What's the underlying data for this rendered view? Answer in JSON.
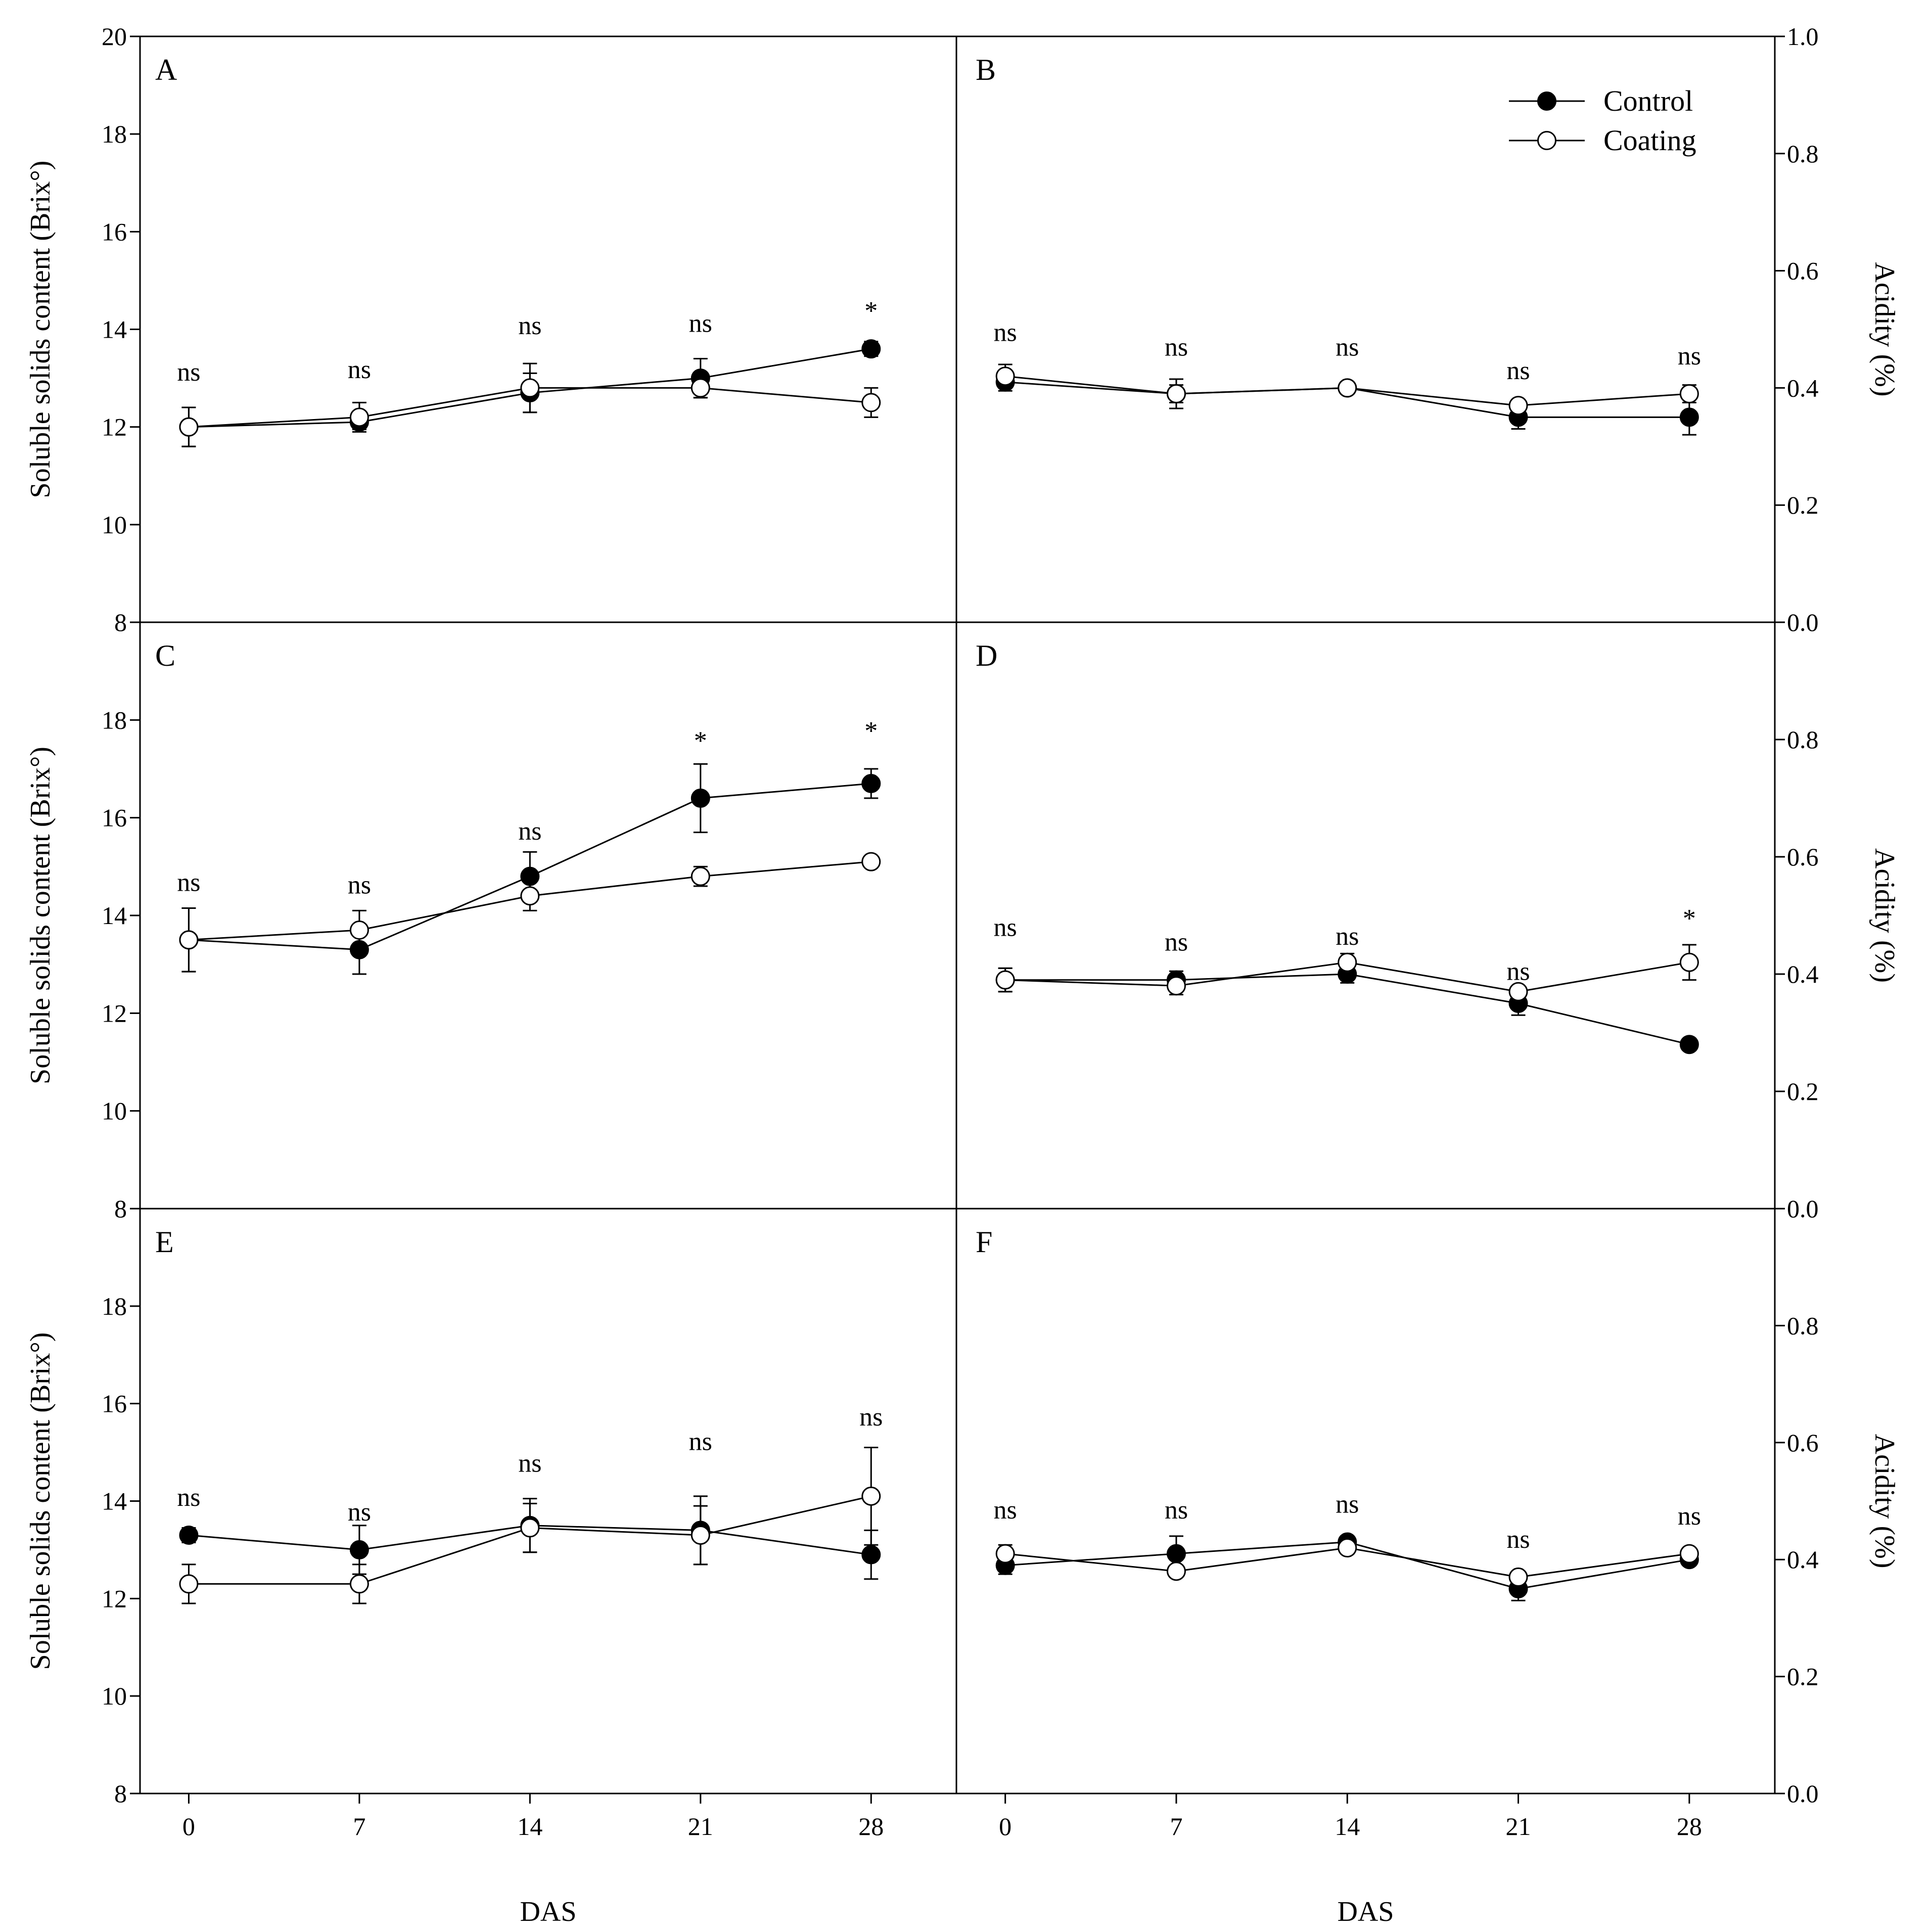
{
  "figure": {
    "x_axis_label": "DAS",
    "left_y_label": "Soluble solids content (Brix°)",
    "right_y_label": "Acidity (%)",
    "legend": [
      {
        "name": "Control",
        "marker": "filled-circle"
      },
      {
        "name": "Coating",
        "marker": "open-circle"
      }
    ]
  },
  "chart_data": [
    {
      "panel": "A",
      "type": "line",
      "axis": "left",
      "x": [
        0,
        7,
        14,
        21,
        28
      ],
      "xlabel": "DAS",
      "ylabel": "Soluble solids content (Brix°)",
      "xlim": [
        -2,
        31.5
      ],
      "ylim": [
        8,
        20
      ],
      "yticks": [
        8,
        10,
        12,
        14,
        16,
        18,
        20
      ],
      "series": [
        {
          "name": "Control",
          "values": [
            12.0,
            12.1,
            12.7,
            13.0,
            13.6
          ],
          "errors": [
            0.4,
            0.15,
            0.4,
            0.4,
            0.15
          ]
        },
        {
          "name": "Coating",
          "values": [
            12.0,
            12.2,
            12.8,
            12.8,
            12.5
          ],
          "errors": [
            0.4,
            0.3,
            0.5,
            0.2,
            0.3
          ]
        }
      ],
      "significance": [
        "ns",
        "ns",
        "ns",
        "ns",
        "*"
      ],
      "significance_y": [
        12.95,
        13.0,
        13.9,
        13.95,
        14.2
      ]
    },
    {
      "panel": "B",
      "type": "line",
      "axis": "right",
      "x": [
        0,
        7,
        14,
        21,
        28
      ],
      "xlabel": "DAS",
      "ylabel": "Acidity (%)",
      "xlim": [
        -2,
        31.5
      ],
      "ylim": [
        0,
        1.0
      ],
      "yticks": [
        0.0,
        0.2,
        0.4,
        0.6,
        0.8,
        1.0
      ],
      "series": [
        {
          "name": "Control",
          "values": [
            0.41,
            0.39,
            0.4,
            0.35,
            0.35
          ],
          "errors": [
            0.015,
            0.015,
            0.01,
            0.02,
            0.03
          ]
        },
        {
          "name": "Coating",
          "values": [
            0.42,
            0.39,
            0.4,
            0.37,
            0.39
          ],
          "errors": [
            0.02,
            0.025,
            0.01,
            0.01,
            0.015
          ]
        }
      ],
      "significance": [
        "ns",
        "ns",
        "ns",
        "ns",
        "ns"
      ],
      "significance_y": [
        0.48,
        0.455,
        0.455,
        0.415,
        0.44
      ]
    },
    {
      "panel": "C",
      "type": "line",
      "axis": "left",
      "x": [
        0,
        7,
        14,
        21,
        28
      ],
      "xlabel": "DAS",
      "ylabel": "Soluble solids content (Brix°)",
      "xlim": [
        -2,
        31.5
      ],
      "ylim": [
        8,
        20
      ],
      "yticks": [
        8,
        10,
        12,
        14,
        16,
        18
      ],
      "series": [
        {
          "name": "Control",
          "values": [
            13.5,
            13.3,
            14.8,
            16.4,
            16.7
          ],
          "errors": [
            0.65,
            0.5,
            0.5,
            0.7,
            0.3
          ]
        },
        {
          "name": "Coating",
          "values": [
            13.5,
            13.7,
            14.4,
            14.8,
            15.1
          ],
          "errors": [
            0.65,
            0.4,
            0.3,
            0.2,
            0.1
          ]
        }
      ],
      "significance": [
        "ns",
        "ns",
        "ns",
        "*",
        "*"
      ],
      "significance_y": [
        14.5,
        14.45,
        15.55,
        17.4,
        17.6
      ]
    },
    {
      "panel": "D",
      "type": "line",
      "axis": "right",
      "x": [
        0,
        7,
        14,
        21,
        28
      ],
      "xlabel": "DAS",
      "ylabel": "Acidity (%)",
      "xlim": [
        -2,
        31.5
      ],
      "ylim": [
        0,
        1.0
      ],
      "yticks": [
        0.0,
        0.2,
        0.4,
        0.6,
        0.8
      ],
      "series": [
        {
          "name": "Control",
          "values": [
            0.39,
            0.39,
            0.4,
            0.35,
            0.28
          ],
          "errors": [
            0.02,
            0.015,
            0.015,
            0.02,
            0.01
          ]
        },
        {
          "name": "Coating",
          "values": [
            0.39,
            0.38,
            0.42,
            0.37,
            0.42
          ],
          "errors": [
            0.02,
            0.015,
            0.015,
            0.01,
            0.03
          ]
        }
      ],
      "significance": [
        "ns",
        "ns",
        "ns",
        "ns",
        "*"
      ],
      "significance_y": [
        0.465,
        0.44,
        0.45,
        0.39,
        0.48
      ]
    },
    {
      "panel": "E",
      "type": "line",
      "axis": "left",
      "x": [
        0,
        7,
        14,
        21,
        28
      ],
      "xlabel": "DAS",
      "ylabel": "Soluble solids content (Brix°)",
      "xlim": [
        -2,
        31.5
      ],
      "ylim": [
        8,
        20
      ],
      "yticks": [
        8,
        10,
        12,
        14,
        16,
        18
      ],
      "series": [
        {
          "name": "Control",
          "values": [
            13.3,
            13.0,
            13.5,
            13.4,
            12.9
          ],
          "errors": [
            0.15,
            0.5,
            0.55,
            0.7,
            0.5
          ]
        },
        {
          "name": "Coating",
          "values": [
            12.3,
            12.3,
            13.45,
            13.3,
            14.1
          ],
          "errors": [
            0.4,
            0.4,
            0.5,
            0.6,
            1.0
          ]
        }
      ],
      "significance": [
        "ns",
        "ns",
        "ns",
        "ns",
        "ns"
      ],
      "significance_y": [
        13.9,
        13.6,
        14.6,
        15.05,
        15.55
      ]
    },
    {
      "panel": "F",
      "type": "line",
      "axis": "right",
      "x": [
        0,
        7,
        14,
        21,
        28
      ],
      "xlabel": "DAS",
      "ylabel": "Acidity (%)",
      "xlim": [
        -2,
        31.5
      ],
      "ylim": [
        0,
        1.0
      ],
      "yticks": [
        0.0,
        0.2,
        0.4,
        0.6,
        0.8
      ],
      "series": [
        {
          "name": "Control",
          "values": [
            0.39,
            0.41,
            0.43,
            0.35,
            0.4
          ],
          "errors": [
            0.015,
            0.03,
            0.01,
            0.02,
            0.01
          ]
        },
        {
          "name": "Coating",
          "values": [
            0.41,
            0.38,
            0.42,
            0.37,
            0.41
          ],
          "errors": [
            0.015,
            0.01,
            0.01,
            0.01,
            0.01
          ]
        }
      ],
      "significance": [
        "ns",
        "ns",
        "ns",
        "ns",
        "ns"
      ],
      "significance_y": [
        0.47,
        0.47,
        0.48,
        0.42,
        0.46
      ]
    }
  ]
}
